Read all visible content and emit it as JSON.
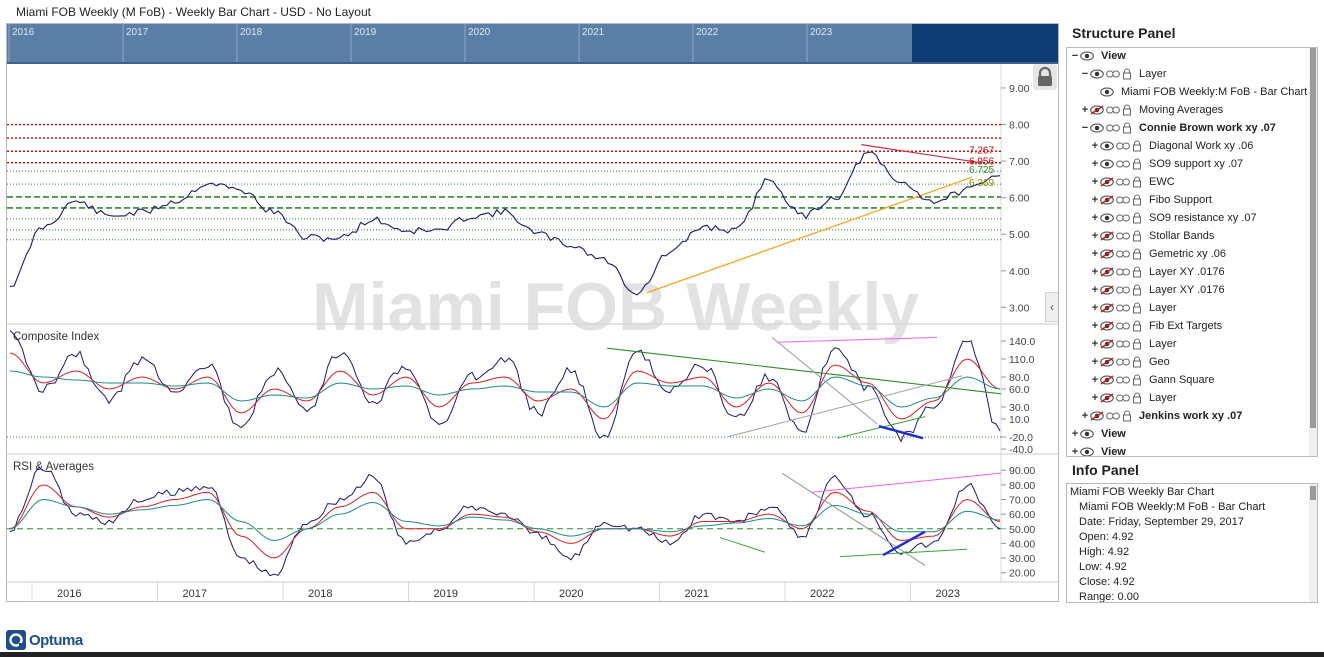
{
  "window": {
    "title": "Miami FOB Weekly (M FoB) - Weekly Bar Chart - USD - No Layout"
  },
  "watermark": "Miami FOB Weekly",
  "navigator": {
    "years": [
      "2016",
      "2017",
      "2018",
      "2019",
      "2020",
      "2021",
      "2022",
      "2023"
    ]
  },
  "panes": {
    "composite_label": "Composite Index",
    "rsi_label": "RSI & Averages"
  },
  "x_axis_labels": [
    "2016",
    "2017",
    "2018",
    "2019",
    "2020",
    "2021",
    "2022",
    "2023"
  ],
  "price_level_labels": [
    "7.267",
    "6.956",
    "6.725",
    "6.369"
  ],
  "icons": {
    "lock": "lock-icon",
    "collapse": "chevron-left-icon",
    "eye": "eye-icon",
    "link": "link-icon",
    "padlock": "padlock-icon"
  },
  "colors": {
    "nav_bg": "#5a7ea6",
    "nav_dark": "#0e3d74",
    "price_line": "#1a1a6e",
    "red_level": "#cc0000",
    "green_level": "#2f8a2f",
    "trend_orange": "#f5a623",
    "magenta": "#ee66ee",
    "blue_thick": "#1f2ad8"
  },
  "structure_panel": {
    "title": "Structure Panel",
    "rows": [
      {
        "label": "View",
        "toggle": "−",
        "depth": 0,
        "bold": true,
        "hidden": false,
        "icons": [
          "eye"
        ]
      },
      {
        "label": "Layer",
        "toggle": "−",
        "depth": 1,
        "bold": false,
        "hidden": false,
        "icons": [
          "eye",
          "link",
          "padlock"
        ]
      },
      {
        "label": "Miami FOB Weekly:M FoB - Bar Chart",
        "toggle": "",
        "depth": 2,
        "bold": false,
        "hidden": false,
        "icons": [
          "eye"
        ]
      },
      {
        "label": "Moving Averages",
        "toggle": "+",
        "depth": 1,
        "bold": false,
        "hidden": true,
        "icons": [
          "eye",
          "link",
          "padlock"
        ]
      },
      {
        "label": "Connie Brown work xy .07",
        "toggle": "−",
        "depth": 1,
        "bold": true,
        "hidden": false,
        "icons": [
          "eye",
          "link",
          "padlock"
        ]
      },
      {
        "label": "Diagonal Work xy .06",
        "toggle": "+",
        "depth": 2,
        "bold": false,
        "hidden": false,
        "icons": [
          "eye",
          "link",
          "padlock"
        ]
      },
      {
        "label": "SO9 support xy .07",
        "toggle": "+",
        "depth": 2,
        "bold": false,
        "hidden": false,
        "icons": [
          "eye",
          "link",
          "padlock"
        ]
      },
      {
        "label": "EWC",
        "toggle": "+",
        "depth": 2,
        "bold": false,
        "hidden": true,
        "icons": [
          "eye",
          "link",
          "padlock"
        ]
      },
      {
        "label": "Fibo Support",
        "toggle": "+",
        "depth": 2,
        "bold": false,
        "hidden": true,
        "icons": [
          "eye",
          "link",
          "padlock"
        ]
      },
      {
        "label": "SO9 resistance xy .07",
        "toggle": "+",
        "depth": 2,
        "bold": false,
        "hidden": false,
        "icons": [
          "eye",
          "link",
          "padlock"
        ]
      },
      {
        "label": "Stollar Bands",
        "toggle": "+",
        "depth": 2,
        "bold": false,
        "hidden": true,
        "icons": [
          "eye",
          "link",
          "padlock"
        ]
      },
      {
        "label": "Gemetric xy .06",
        "toggle": "+",
        "depth": 2,
        "bold": false,
        "hidden": true,
        "icons": [
          "eye",
          "link",
          "padlock"
        ]
      },
      {
        "label": "Layer XY .0176",
        "toggle": "+",
        "depth": 2,
        "bold": false,
        "hidden": true,
        "icons": [
          "eye",
          "link",
          "padlock"
        ]
      },
      {
        "label": "Layer XY .0176",
        "toggle": "+",
        "depth": 2,
        "bold": false,
        "hidden": true,
        "icons": [
          "eye",
          "link",
          "padlock"
        ]
      },
      {
        "label": "Layer",
        "toggle": "+",
        "depth": 2,
        "bold": false,
        "hidden": true,
        "icons": [
          "eye",
          "link",
          "padlock"
        ]
      },
      {
        "label": "Fib Ext Targets",
        "toggle": "+",
        "depth": 2,
        "bold": false,
        "hidden": true,
        "icons": [
          "eye",
          "link",
          "padlock"
        ]
      },
      {
        "label": "Layer",
        "toggle": "+",
        "depth": 2,
        "bold": false,
        "hidden": true,
        "icons": [
          "eye",
          "link",
          "padlock"
        ]
      },
      {
        "label": "Geo",
        "toggle": "+",
        "depth": 2,
        "bold": false,
        "hidden": true,
        "icons": [
          "eye",
          "link",
          "padlock"
        ]
      },
      {
        "label": "Gann Square",
        "toggle": "+",
        "depth": 2,
        "bold": false,
        "hidden": true,
        "icons": [
          "eye",
          "link",
          "padlock"
        ]
      },
      {
        "label": "Layer",
        "toggle": "+",
        "depth": 2,
        "bold": false,
        "hidden": true,
        "icons": [
          "eye",
          "link",
          "padlock"
        ]
      },
      {
        "label": "Jenkins work xy .07",
        "toggle": "+",
        "depth": 1,
        "bold": true,
        "hidden": true,
        "icons": [
          "eye",
          "link",
          "padlock"
        ]
      },
      {
        "label": "View",
        "toggle": "+",
        "depth": 0,
        "bold": true,
        "hidden": false,
        "icons": [
          "eye"
        ]
      },
      {
        "label": "View",
        "toggle": "+",
        "depth": 0,
        "bold": true,
        "hidden": false,
        "icons": [
          "eye"
        ]
      }
    ]
  },
  "info_panel": {
    "title": "Info Panel",
    "lines": [
      "Miami FOB Weekly Bar Chart",
      "Miami FOB Weekly:M FoB - Bar Chart",
      "Date: Friday, September 29, 2017",
      "Open: 4.92",
      "High: 4.92",
      "Low: 4.92",
      "Close: 4.92",
      "Range: 0.00"
    ]
  },
  "brand": {
    "name": "Optuma"
  },
  "chart_data": [
    {
      "type": "line",
      "title": "",
      "y_ticks": [
        "9.00",
        "8.00",
        "7.00",
        "6.00",
        "5.00",
        "4.00",
        "3.00"
      ],
      "ylim": [
        2.6,
        9.6
      ],
      "x": [
        "2015-09",
        "2015-12",
        "2016-03",
        "2016-06",
        "2016-09",
        "2016-12",
        "2017-03",
        "2017-06",
        "2017-09",
        "2017-12",
        "2018-03",
        "2018-06",
        "2018-09",
        "2018-12",
        "2019-03",
        "2019-06",
        "2019-09",
        "2019-12",
        "2020-03",
        "2020-06",
        "2020-09",
        "2020-12",
        "2021-03",
        "2021-06",
        "2021-09",
        "2021-12",
        "2022-03",
        "2022-06",
        "2022-09",
        "2022-12",
        "2023-03"
      ],
      "series": [
        {
          "values": [
            3.6,
            5.2,
            5.9,
            5.5,
            5.6,
            5.9,
            6.4,
            6.2,
            5.6,
            4.9,
            4.9,
            5.4,
            5.1,
            5.1,
            5.5,
            5.6,
            5.0,
            4.7,
            4.3,
            3.4,
            4.5,
            5.2,
            5.1,
            6.5,
            5.5,
            6.0,
            7.2,
            6.4,
            5.9,
            6.2,
            6.6
          ]
        }
      ],
      "levels_red": [
        8.0,
        7.63,
        7.27,
        6.956
      ],
      "levels_green": [
        6.725,
        6.369,
        6.02,
        5.72,
        5.42,
        5.12,
        4.85
      ]
    },
    {
      "type": "line",
      "title": "Composite Index",
      "y_ticks": [
        "140.0",
        "110.0",
        "80.0",
        "60.0",
        "30.0",
        "10.0",
        "-20.0",
        "-40.0"
      ],
      "ylim": [
        -45,
        160
      ],
      "x": [
        "2015-09",
        "2015-12",
        "2016-03",
        "2016-06",
        "2016-09",
        "2016-12",
        "2017-03",
        "2017-06",
        "2017-09",
        "2017-12",
        "2018-03",
        "2018-06",
        "2018-09",
        "2018-12",
        "2019-03",
        "2019-06",
        "2019-09",
        "2019-12",
        "2020-03",
        "2020-06",
        "2020-09",
        "2020-12",
        "2021-03",
        "2021-06",
        "2021-09",
        "2021-12",
        "2022-03",
        "2022-06",
        "2022-09",
        "2022-12",
        "2023-03"
      ],
      "series": [
        {
          "values": [
            150,
            60,
            120,
            40,
            110,
            60,
            100,
            -10,
            90,
            20,
            120,
            40,
            100,
            0,
            80,
            110,
            20,
            90,
            -20,
            120,
            60,
            100,
            10,
            80,
            -10,
            130,
            60,
            -20,
            30,
            145,
            -10
          ]
        },
        {
          "values": [
            120,
            70,
            90,
            60,
            80,
            60,
            80,
            20,
            60,
            40,
            90,
            50,
            80,
            30,
            70,
            80,
            40,
            60,
            10,
            90,
            70,
            80,
            30,
            70,
            20,
            100,
            70,
            10,
            40,
            110,
            60
          ]
        },
        {
          "values": [
            90,
            80,
            75,
            70,
            70,
            65,
            70,
            40,
            50,
            45,
            70,
            60,
            65,
            50,
            60,
            65,
            55,
            55,
            30,
            70,
            65,
            65,
            45,
            60,
            40,
            80,
            65,
            30,
            45,
            80,
            60
          ]
        }
      ]
    },
    {
      "type": "line",
      "title": "RSI & Averages",
      "y_ticks": [
        "90.00",
        "80.00",
        "70.00",
        "60.00",
        "50.00",
        "40.00",
        "30.00",
        "20.00"
      ],
      "ylim": [
        15,
        97
      ],
      "x": [
        "2015-09",
        "2015-12",
        "2016-03",
        "2016-06",
        "2016-09",
        "2016-12",
        "2017-03",
        "2017-06",
        "2017-09",
        "2017-12",
        "2018-03",
        "2018-06",
        "2018-09",
        "2018-12",
        "2019-03",
        "2019-06",
        "2019-09",
        "2019-12",
        "2020-03",
        "2020-06",
        "2020-09",
        "2020-12",
        "2021-03",
        "2021-06",
        "2021-09",
        "2021-12",
        "2022-03",
        "2022-06",
        "2022-09",
        "2022-12",
        "2023-03"
      ],
      "series": [
        {
          "values": [
            50,
            92,
            60,
            55,
            70,
            75,
            80,
            30,
            18,
            55,
            70,
            85,
            40,
            50,
            65,
            60,
            45,
            30,
            55,
            50,
            40,
            60,
            55,
            65,
            45,
            85,
            60,
            35,
            40,
            80,
            50
          ]
        },
        {
          "values": [
            50,
            80,
            65,
            58,
            65,
            70,
            75,
            45,
            30,
            50,
            65,
            75,
            50,
            50,
            60,
            58,
            48,
            40,
            50,
            50,
            45,
            55,
            55,
            60,
            50,
            75,
            62,
            42,
            45,
            70,
            55
          ]
        },
        {
          "values": [
            50,
            70,
            65,
            60,
            63,
            66,
            70,
            55,
            42,
            50,
            60,
            68,
            55,
            52,
            58,
            56,
            50,
            45,
            50,
            50,
            48,
            52,
            54,
            57,
            52,
            66,
            60,
            48,
            48,
            62,
            56
          ]
        }
      ],
      "level": 50
    }
  ]
}
